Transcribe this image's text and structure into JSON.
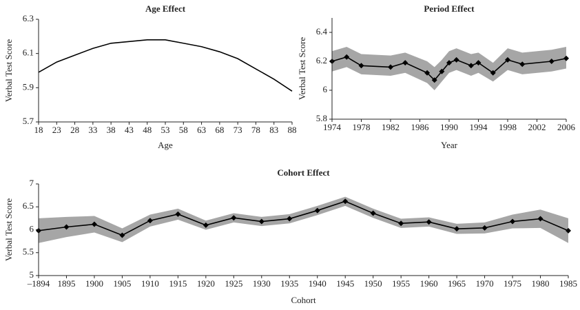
{
  "chart_data": [
    {
      "type": "line",
      "title": "Age Effect",
      "xlabel": "Age",
      "ylabel": "Verbal Test Score",
      "x": [
        18,
        23,
        28,
        33,
        38,
        43,
        48,
        53,
        58,
        63,
        68,
        73,
        78,
        83,
        88
      ],
      "xlim": [
        18,
        88
      ],
      "xticks": [
        18,
        23,
        28,
        33,
        38,
        43,
        48,
        53,
        58,
        63,
        68,
        73,
        78,
        83,
        88
      ],
      "ylim": [
        5.7,
        6.3
      ],
      "yticks": [
        5.7,
        5.9,
        6.1,
        6.3
      ],
      "series": [
        {
          "color": "#000000",
          "values": [
            5.99,
            6.05,
            6.09,
            6.13,
            6.16,
            6.17,
            6.18,
            6.18,
            6.16,
            6.14,
            6.11,
            6.07,
            6.01,
            5.95,
            5.88
          ]
        }
      ]
    },
    {
      "type": "line",
      "title": "Period Effect",
      "xlabel": "Year",
      "ylabel": "Verbal Test Score",
      "x": [
        1974,
        1976,
        1978,
        1982,
        1984,
        1987,
        1988,
        1989,
        1990,
        1991,
        1993,
        1994,
        1996,
        1998,
        2000,
        2004,
        2006
      ],
      "xlim": [
        1974,
        2006
      ],
      "xticks": [
        1974,
        1978,
        1982,
        1986,
        1990,
        1994,
        1998,
        2002,
        2006
      ],
      "ylim": [
        5.8,
        6.5
      ],
      "yticks": [
        5.8,
        6,
        6.2,
        6.4
      ],
      "series": [
        {
          "color": "#000000",
          "marker": "diamond",
          "band_color": "#a6a6a6",
          "values": [
            6.2,
            6.23,
            6.17,
            6.16,
            6.19,
            6.12,
            6.07,
            6.13,
            6.19,
            6.21,
            6.17,
            6.19,
            6.12,
            6.21,
            6.18,
            6.2,
            6.22
          ],
          "lower": [
            6.13,
            6.16,
            6.11,
            6.1,
            6.12,
            6.05,
            6.0,
            6.06,
            6.12,
            6.14,
            6.1,
            6.12,
            6.06,
            6.14,
            6.11,
            6.13,
            6.15
          ],
          "upper": [
            6.27,
            6.3,
            6.25,
            6.24,
            6.26,
            6.2,
            6.16,
            6.21,
            6.27,
            6.29,
            6.25,
            6.26,
            6.19,
            6.29,
            6.26,
            6.28,
            6.3
          ]
        }
      ]
    },
    {
      "type": "line",
      "title": "Cohort Effect",
      "xlabel": "Cohort",
      "ylabel": "Verbal Test Score",
      "categories": [
        "–1894",
        "1895",
        "1900",
        "1905",
        "1910",
        "1915",
        "1920",
        "1925",
        "1930",
        "1935",
        "1940",
        "1945",
        "1950",
        "1955",
        "1960",
        "1965",
        "1970",
        "1975",
        "1980",
        "1985"
      ],
      "ylim": [
        5,
        7
      ],
      "yticks": [
        5,
        5.5,
        6,
        6.5,
        7
      ],
      "series": [
        {
          "color": "#000000",
          "marker": "diamond",
          "band_color": "#a6a6a6",
          "values": [
            5.98,
            6.06,
            6.12,
            5.88,
            6.2,
            6.34,
            6.1,
            6.26,
            6.18,
            6.24,
            6.42,
            6.62,
            6.36,
            6.14,
            6.17,
            6.02,
            6.04,
            6.18,
            6.24,
            5.98
          ],
          "lower": [
            5.71,
            5.84,
            5.94,
            5.73,
            6.07,
            6.22,
            6.0,
            6.16,
            6.08,
            6.14,
            6.32,
            6.52,
            6.26,
            6.04,
            6.07,
            5.91,
            5.92,
            6.03,
            6.04,
            5.71
          ],
          "upper": [
            6.25,
            6.28,
            6.3,
            6.03,
            6.33,
            6.46,
            6.2,
            6.36,
            6.28,
            6.34,
            6.52,
            6.72,
            6.46,
            6.24,
            6.27,
            6.13,
            6.16,
            6.33,
            6.44,
            6.25
          ]
        }
      ]
    }
  ]
}
